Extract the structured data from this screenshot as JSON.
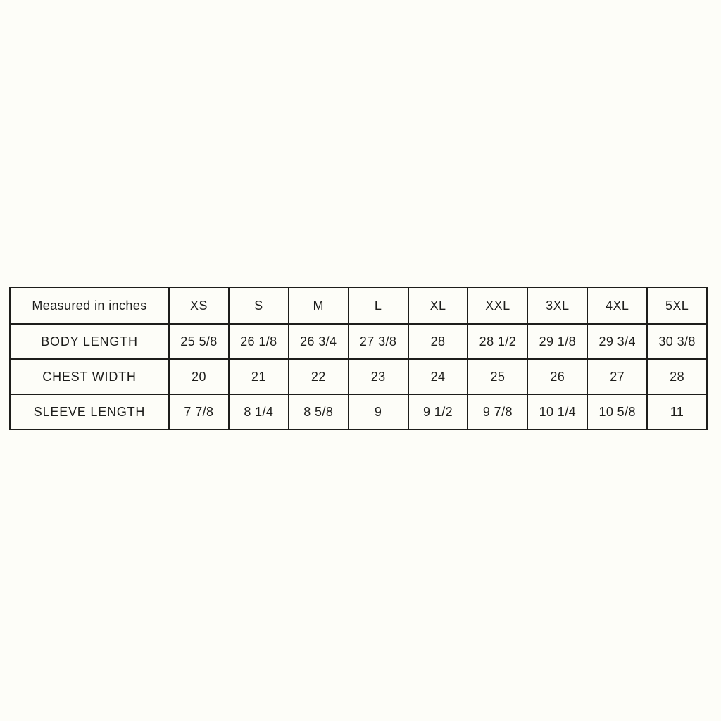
{
  "chart_data": {
    "type": "table",
    "columns": [
      "Measured in inches",
      "XS",
      "S",
      "M",
      "L",
      "XL",
      "XXL",
      "3XL",
      "4XL",
      "5XL"
    ],
    "rows": [
      {
        "label": "BODY LENGTH",
        "values": [
          "25 5/8",
          "26 1/8",
          "26 3/4",
          "27 3/8",
          "28",
          "28 1/2",
          "29 1/8",
          "29 3/4",
          "30 3/8"
        ]
      },
      {
        "label": "CHEST WIDTH",
        "values": [
          "20",
          "21",
          "22",
          "23",
          "24",
          "25",
          "26",
          "27",
          "28"
        ]
      },
      {
        "label": "SLEEVE LENGTH",
        "values": [
          "7 7/8",
          "8 1/4",
          "8 5/8",
          "9",
          "9 1/2",
          "9 7/8",
          "10 1/4",
          "10 5/8",
          "11"
        ]
      }
    ]
  },
  "colors": {
    "border": "#1d1d1b",
    "text": "#1d1d1b",
    "background": "#fdfdf8"
  }
}
